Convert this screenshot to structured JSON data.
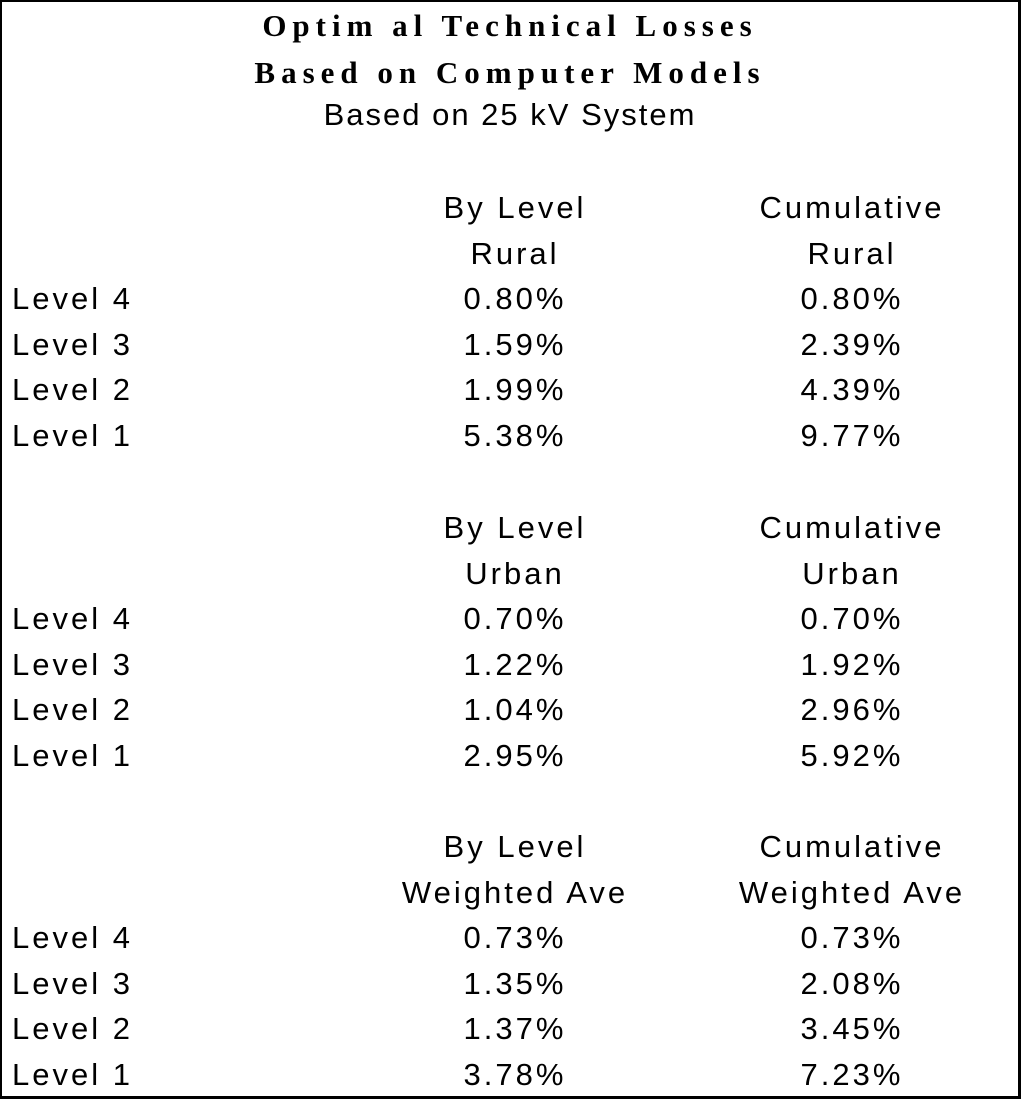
{
  "document": {
    "title_line1": "Optim al Technical Losses",
    "title_line2": "Based on Computer Models",
    "subtitle": "Based on 25 kV System"
  },
  "sections": [
    {
      "header_col1_line1": "By Level",
      "header_col1_line2": "Rural",
      "header_col2_line1": "Cumulative",
      "header_col2_line2": "Rural",
      "rows": [
        {
          "label": "Level 4",
          "by_level": "0.80%",
          "cumulative": "0.80%"
        },
        {
          "label": "Level 3",
          "by_level": "1.59%",
          "cumulative": "2.39%"
        },
        {
          "label": "Level 2",
          "by_level": "1.99%",
          "cumulative": "4.39%"
        },
        {
          "label": "Level 1",
          "by_level": "5.38%",
          "cumulative": "9.77%"
        }
      ]
    },
    {
      "header_col1_line1": "By Level",
      "header_col1_line2": "Urban",
      "header_col2_line1": "Cumulative",
      "header_col2_line2": "Urban",
      "rows": [
        {
          "label": "Level 4",
          "by_level": "0.70%",
          "cumulative": "0.70%"
        },
        {
          "label": "Level 3",
          "by_level": "1.22%",
          "cumulative": "1.92%"
        },
        {
          "label": "Level 2",
          "by_level": "1.04%",
          "cumulative": "2.96%"
        },
        {
          "label": "Level 1",
          "by_level": "2.95%",
          "cumulative": "5.92%"
        }
      ]
    },
    {
      "header_col1_line1": "By Level",
      "header_col1_line2": "Weighted Ave",
      "header_col2_line1": "Cumulative",
      "header_col2_line2": "Weighted Ave",
      "rows": [
        {
          "label": "Level 4",
          "by_level": "0.73%",
          "cumulative": "0.73%"
        },
        {
          "label": "Level 3",
          "by_level": "1.35%",
          "cumulative": "2.08%"
        },
        {
          "label": "Level 2",
          "by_level": "1.37%",
          "cumulative": "3.45%"
        },
        {
          "label": "Level 1",
          "by_level": "3.78%",
          "cumulative": "7.23%"
        }
      ]
    }
  ]
}
